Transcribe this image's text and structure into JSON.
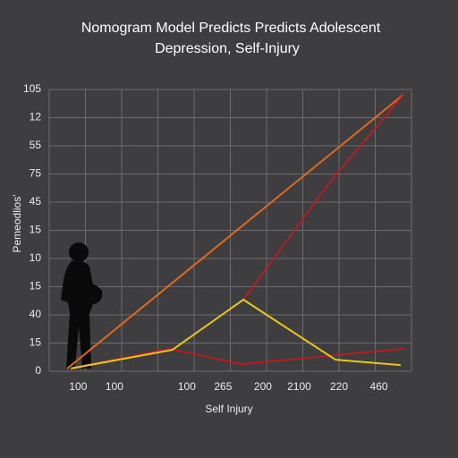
{
  "chart_data": {
    "type": "line",
    "title": "Nomogram Model Predicts Predicts Adolescent",
    "subtitle": "Depression, Self-Injury",
    "x_label": "Self Injury",
    "y_label": "Pemeodlios'",
    "xlim": [
      0,
      10
    ],
    "ylim": [
      0,
      10
    ],
    "xticks": [
      {
        "value": 0.8,
        "label": "100"
      },
      {
        "value": 1.8,
        "label": "100"
      },
      {
        "value": 3.8,
        "label": "100"
      },
      {
        "value": 4.8,
        "label": "265"
      },
      {
        "value": 5.9,
        "label": "200"
      },
      {
        "value": 6.9,
        "label": "2100"
      },
      {
        "value": 8,
        "label": "220"
      },
      {
        "value": 9.1,
        "label": "460"
      }
    ],
    "yticks": [
      {
        "value": 0,
        "label": "0"
      },
      {
        "value": 1,
        "label": "15"
      },
      {
        "value": 2,
        "label": "40"
      },
      {
        "value": 3,
        "label": "15"
      },
      {
        "value": 4,
        "label": "10"
      },
      {
        "value": 5,
        "label": "15"
      },
      {
        "value": 6,
        "label": "45"
      },
      {
        "value": 7,
        "label": "75"
      },
      {
        "value": 8,
        "label": "55"
      },
      {
        "value": 9,
        "label": "12"
      },
      {
        "value": 10,
        "label": "105"
      }
    ],
    "grid": true,
    "series": [
      {
        "color": "#e06a1a",
        "x": [
          0.5,
          9.8
        ],
        "values": [
          0.1,
          9.84
        ]
      },
      {
        "color": "#b81c1c",
        "x": [
          0.6,
          3.3,
          5.3,
          9.8
        ],
        "values": [
          0.1,
          0.8,
          0.25,
          0.8
        ]
      },
      {
        "color": "#b81c24",
        "x": [
          5.36,
          7.8,
          9.8
        ],
        "values": [
          2.54,
          6.8,
          9.84
        ]
      },
      {
        "color": "#e8c81a",
        "x": [
          0.6,
          3.4,
          5.36,
          7.9,
          9.7
        ],
        "values": [
          0.1,
          0.76,
          2.54,
          0.41,
          0.22
        ]
      }
    ]
  }
}
